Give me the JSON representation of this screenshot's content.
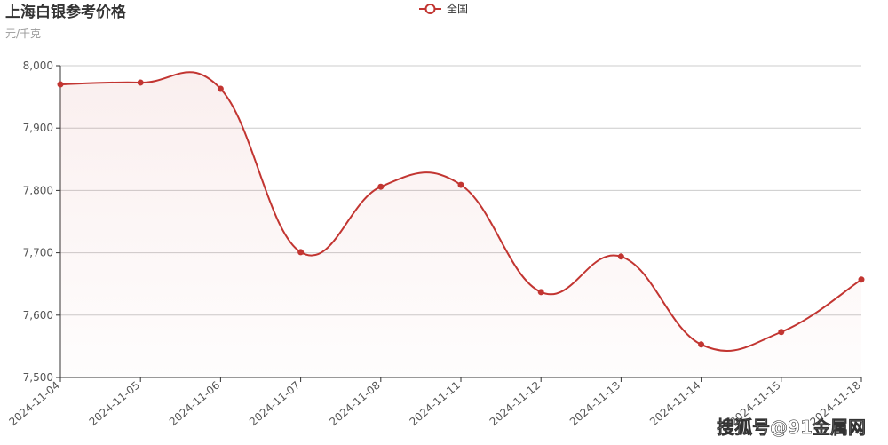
{
  "chart_data": {
    "type": "line",
    "title": "上海白银参考价格",
    "subtitle": "元/千克",
    "categories": [
      "2024-11-04",
      "2024-11-05",
      "2024-11-06",
      "2024-11-07",
      "2024-11-08",
      "2024-11-11",
      "2024-11-12",
      "2024-11-13",
      "2024-11-14",
      "2024-11-15",
      "2024-11-18"
    ],
    "series": [
      {
        "name": "全国",
        "color": "#c23531",
        "values": [
          7970,
          7973,
          7963,
          7701,
          7806,
          7809,
          7637,
          7694,
          7553,
          7573,
          7657
        ]
      }
    ],
    "ylim": [
      7500,
      8000
    ],
    "yticks": [
      {
        "value": 7500,
        "label": "7,500"
      },
      {
        "value": 7600,
        "label": "7,600"
      },
      {
        "value": 7700,
        "label": "7,700"
      },
      {
        "value": 7800,
        "label": "7,800"
      },
      {
        "value": 7900,
        "label": "7,900"
      },
      {
        "value": 8000,
        "label": "8,000"
      }
    ],
    "grid": true,
    "legend": "top",
    "watermark": "搜狐号@91金属网"
  }
}
